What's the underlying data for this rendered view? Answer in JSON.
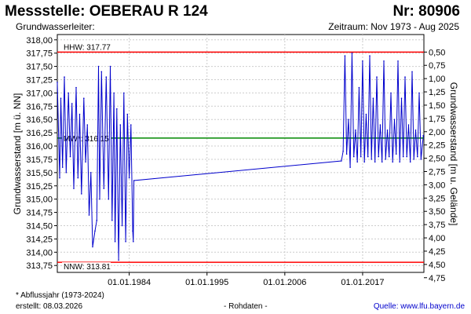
{
  "header": {
    "title": "Messstelle: OEBERAU R 124",
    "number": "Nr: 80906",
    "subtitle": "Grundwasserleiter:",
    "period": "Zeitraum: Nov 1973 - Aug 2025"
  },
  "footer": {
    "note": "* Abflussjahr (1973-2024)",
    "created": "erstellt:  08.03.2026",
    "raw": "- Rohdaten -",
    "source": "Quelle: www.lfu.bayern.de"
  },
  "colors": {
    "series": "#0000cc",
    "hhw": "#ff0000",
    "nnw": "#ff0000",
    "mw": "#008800",
    "grid": "#cccccc"
  },
  "chart_data": {
    "type": "line",
    "title": "",
    "ylabel": "Grundwasserstand [m ü. NN]",
    "ylabel_right": "Grundwasserstand [m u. Gelände]",
    "ylim": [
      313.62,
      318.1
    ],
    "xlim": [
      "1973-11-01",
      "2025-08-31"
    ],
    "x_ticks": [
      "01.01.1984",
      "01.01.1995",
      "01.01.2006",
      "01.01.2017"
    ],
    "y_ticks_left": [
      "313,75",
      "314,00",
      "314,25",
      "314,50",
      "314,75",
      "315,00",
      "315,25",
      "315,50",
      "315,75",
      "316,00",
      "316,25",
      "316,50",
      "316,75",
      "317,00",
      "317,25",
      "317,50",
      "317,75",
      "318,00"
    ],
    "y_ticks_right": [
      "0,50",
      "0,75",
      "1,00",
      "1,25",
      "1,50",
      "1,75",
      "2,00",
      "2,25",
      "2,50",
      "2,75",
      "3,00",
      "3,25",
      "3,50",
      "3,75",
      "4,00",
      "4,25",
      "4,50",
      "4,75"
    ],
    "reference_lines": [
      {
        "label": "HHW: 317.77",
        "value": 317.77
      },
      {
        "label": "MW*: 316.15",
        "value": 316.15
      },
      {
        "label": "NNW: 313.81",
        "value": 313.81
      }
    ],
    "series": [
      {
        "x": [
          "1973-11-01",
          "1974-03-01",
          "1974-05-01",
          "1974-08-01",
          "1974-11-01",
          "1975-02-01",
          "1975-06-01",
          "1975-09-01",
          "1975-12-01",
          "1976-03-01",
          "1976-07-01",
          "1976-10-01",
          "1977-01-01",
          "1977-04-01",
          "1977-08-01",
          "1977-11-01",
          "1978-02-01",
          "1978-05-01",
          "1978-08-01",
          "1978-11-01",
          "1979-03-01",
          "1979-06-01",
          "1979-09-01",
          "1979-11-01",
          "1980-02-01",
          "1980-06-01",
          "1980-10-01",
          "1981-02-01",
          "1981-05-01",
          "1981-08-01",
          "1981-11-01",
          "1982-01-01",
          "1982-04-01",
          "1982-07-01",
          "1982-10-01",
          "1983-01-01",
          "1983-04-01",
          "1983-07-01",
          "1983-10-01",
          "1984-01-01",
          "1984-04-01",
          "1984-07-01",
          "1984-08-01",
          "1984-09-01",
          "2014-01-01",
          "2014-04-01",
          "2014-07-01",
          "2014-10-01",
          "2015-01-01",
          "2015-04-01",
          "2015-07-01",
          "2015-10-01",
          "2016-01-01",
          "2016-04-01",
          "2016-07-01",
          "2016-10-01",
          "2017-01-01",
          "2017-04-01",
          "2017-07-01",
          "2017-10-01",
          "2018-01-01",
          "2018-04-01",
          "2018-07-01",
          "2018-10-01",
          "2019-01-01",
          "2019-04-01",
          "2019-07-01",
          "2019-10-01",
          "2020-01-01",
          "2020-04-01",
          "2020-07-01",
          "2020-10-01",
          "2021-01-01",
          "2021-04-01",
          "2021-07-01",
          "2021-10-01",
          "2022-01-01",
          "2022-04-01",
          "2022-07-01",
          "2022-10-01",
          "2023-01-01",
          "2023-04-01",
          "2023-07-01",
          "2023-10-01",
          "2024-01-01",
          "2024-04-01",
          "2024-07-01",
          "2024-10-01",
          "2025-01-01",
          "2025-04-01",
          "2025-08-01"
        ],
        "values": [
          317.2,
          315.4,
          316.9,
          315.6,
          317.3,
          315.5,
          317.0,
          315.8,
          316.8,
          315.2,
          317.1,
          315.4,
          316.6,
          315.1,
          316.9,
          315.7,
          316.4,
          314.7,
          315.5,
          314.1,
          314.4,
          314.6,
          317.5,
          315.0,
          317.4,
          315.2,
          317.3,
          315.0,
          317.5,
          314.6,
          317.0,
          314.2,
          316.7,
          313.85,
          316.4,
          314.5,
          317.0,
          314.2,
          316.6,
          315.4,
          316.4,
          314.4,
          314.2,
          315.35,
          315.72,
          315.9,
          317.7,
          315.85,
          316.5,
          315.6,
          317.75,
          315.8,
          316.3,
          315.7,
          317.1,
          315.8,
          317.6,
          315.7,
          316.6,
          315.8,
          317.7,
          315.75,
          316.9,
          315.7,
          317.3,
          315.8,
          316.4,
          315.7,
          317.6,
          315.75,
          316.3,
          315.8,
          317.0,
          315.7,
          316.5,
          315.85,
          317.6,
          315.7,
          316.9,
          315.8,
          317.3,
          315.8,
          316.4,
          315.7,
          317.4,
          315.75,
          316.3,
          315.8,
          317.0,
          315.75,
          316.2
        ]
      }
    ]
  }
}
